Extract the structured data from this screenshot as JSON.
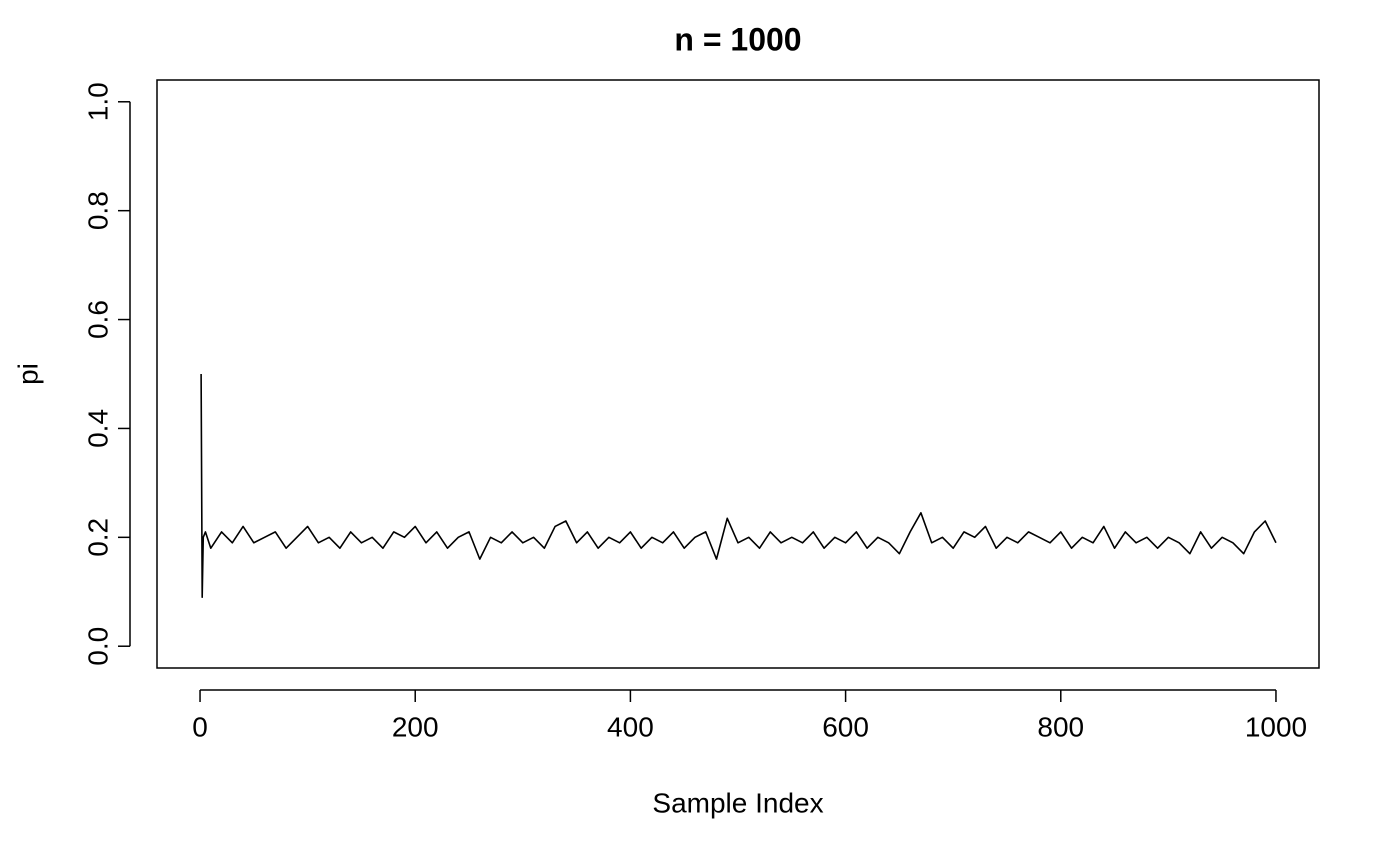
{
  "chart_data": {
    "type": "line",
    "title": "n = 1000",
    "x_label": "Sample Index",
    "y_label": "pi",
    "color": "#000000",
    "x": [
      1,
      2,
      3,
      5,
      10,
      20,
      30,
      40,
      50,
      60,
      70,
      80,
      90,
      100,
      110,
      120,
      130,
      140,
      150,
      160,
      170,
      180,
      190,
      200,
      210,
      220,
      230,
      240,
      250,
      260,
      270,
      280,
      290,
      300,
      310,
      320,
      330,
      340,
      350,
      360,
      370,
      380,
      390,
      400,
      410,
      420,
      430,
      440,
      450,
      460,
      470,
      480,
      490,
      500,
      510,
      520,
      530,
      540,
      550,
      560,
      570,
      580,
      590,
      600,
      610,
      620,
      630,
      640,
      650,
      660,
      670,
      680,
      690,
      700,
      710,
      720,
      730,
      740,
      750,
      760,
      770,
      780,
      790,
      800,
      810,
      820,
      830,
      840,
      850,
      860,
      870,
      880,
      890,
      900,
      910,
      920,
      930,
      940,
      950,
      960,
      970,
      980,
      990,
      1000
    ],
    "values": [
      0.5,
      0.09,
      0.2,
      0.21,
      0.18,
      0.21,
      0.19,
      0.22,
      0.19,
      0.2,
      0.21,
      0.18,
      0.2,
      0.22,
      0.19,
      0.2,
      0.18,
      0.21,
      0.19,
      0.2,
      0.18,
      0.21,
      0.2,
      0.22,
      0.19,
      0.21,
      0.18,
      0.2,
      0.21,
      0.16,
      0.2,
      0.19,
      0.21,
      0.19,
      0.2,
      0.18,
      0.22,
      0.23,
      0.19,
      0.21,
      0.18,
      0.2,
      0.19,
      0.21,
      0.18,
      0.2,
      0.19,
      0.21,
      0.18,
      0.2,
      0.21,
      0.16,
      0.235,
      0.19,
      0.2,
      0.18,
      0.21,
      0.19,
      0.2,
      0.19,
      0.21,
      0.18,
      0.2,
      0.19,
      0.21,
      0.18,
      0.2,
      0.19,
      0.17,
      0.21,
      0.245,
      0.19,
      0.2,
      0.18,
      0.21,
      0.2,
      0.22,
      0.18,
      0.2,
      0.19,
      0.21,
      0.2,
      0.19,
      0.21,
      0.18,
      0.2,
      0.19,
      0.22,
      0.18,
      0.21,
      0.19,
      0.2,
      0.18,
      0.2,
      0.19,
      0.17,
      0.21,
      0.18,
      0.2,
      0.19,
      0.17,
      0.21,
      0.23,
      0.19
    ],
    "xlim": [
      -40,
      1040
    ],
    "ylim": [
      -0.04,
      1.04
    ],
    "xticks": [
      0,
      200,
      400,
      600,
      800,
      1000
    ],
    "yticks": [
      {
        "value": 0,
        "label": "0.0"
      },
      0.2,
      0.4,
      0.6,
      0.8,
      {
        "value": 1,
        "label": "1.0"
      }
    ]
  }
}
